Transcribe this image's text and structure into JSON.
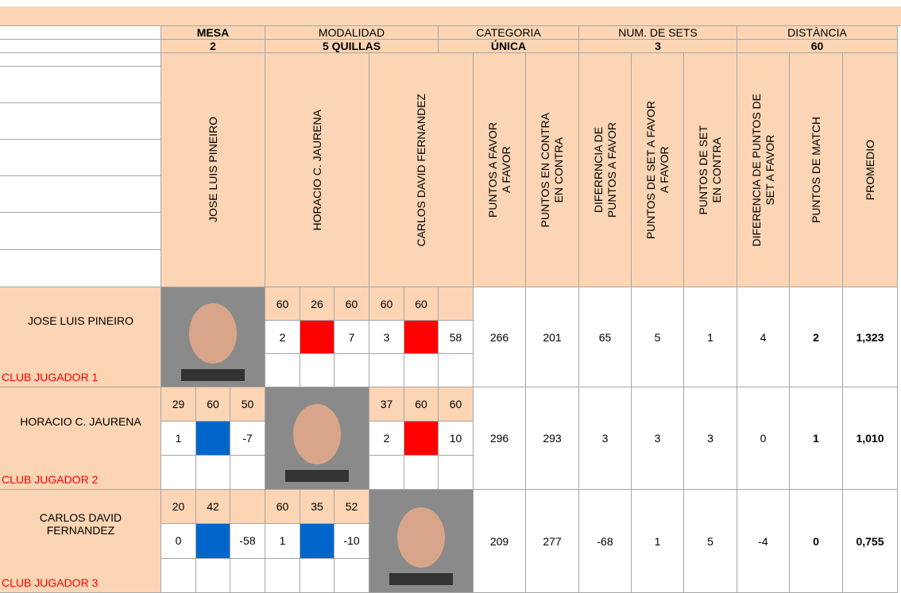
{
  "header": {
    "labels": [
      "MESA",
      "MODALIDAD",
      "CATEGORIA",
      "NUM. DE SETS",
      "DISTÀNCIA"
    ],
    "values": [
      2,
      "5 QUILLAS",
      "ÚNICA",
      3,
      60
    ]
  },
  "columns": [
    "JOSE LUIS PINEIRO",
    "HORACIO C. JAURENA",
    "CARLOS DAVID FERNANDEZ",
    "PUNTOS A FAVOR\nA FAVOR",
    "PUNTOS EN CONTRA\nEN CONTRA",
    "DIFERRNCIA DE\nPUNTOS A FAVOR",
    "PUNTOS DE SET A FAVOR\nA FAVOR",
    "PUNTOS DE SET\nEN CONTRA",
    "DIFERENCIA DE PUNTOS DE\nSET A FAVOR",
    "PUNTOS DE MATCH",
    "PROMEDIO"
  ],
  "rows": [
    {
      "name": "JOSE LUIS PINEIRO",
      "club": "CLUB JUGADOR 1",
      "games": [
        {
          "top": [
            60,
            26,
            60
          ],
          "bottom": [
            2,
            7
          ],
          "color": "#ff0000"
        },
        {
          "top": [
            60,
            60
          ],
          "bottom": [
            3,
            58
          ],
          "color": "#ff0000"
        }
      ],
      "stats": [
        266,
        201,
        65,
        5,
        1,
        4,
        2,
        "1,323"
      ]
    },
    {
      "name": "HORACIO C. JAURENA",
      "club": "CLUB JUGADOR 2",
      "games": [
        {
          "top": [
            29,
            60,
            50
          ],
          "bottom": [
            1,
            -7
          ],
          "color": "#0066cc"
        },
        {
          "top": [
            37,
            60,
            60
          ],
          "bottom": [
            2,
            10
          ],
          "color": "#ff0000"
        }
      ],
      "stats": [
        296,
        293,
        3,
        3,
        3,
        0,
        1,
        "1,010"
      ]
    },
    {
      "name": "CARLOS DAVID FERNANDEZ",
      "club": "CLUB JUGADOR 3",
      "games": [
        {
          "top": [
            20,
            42
          ],
          "bottom": [
            0,
            -58
          ],
          "color": "#0066cc"
        },
        {
          "top": [
            60,
            35,
            52
          ],
          "bottom": [
            1,
            -10
          ],
          "color": "#0066cc"
        }
      ],
      "stats": [
        209,
        277,
        -68,
        1,
        5,
        -4,
        0,
        "0,755"
      ]
    }
  ]
}
